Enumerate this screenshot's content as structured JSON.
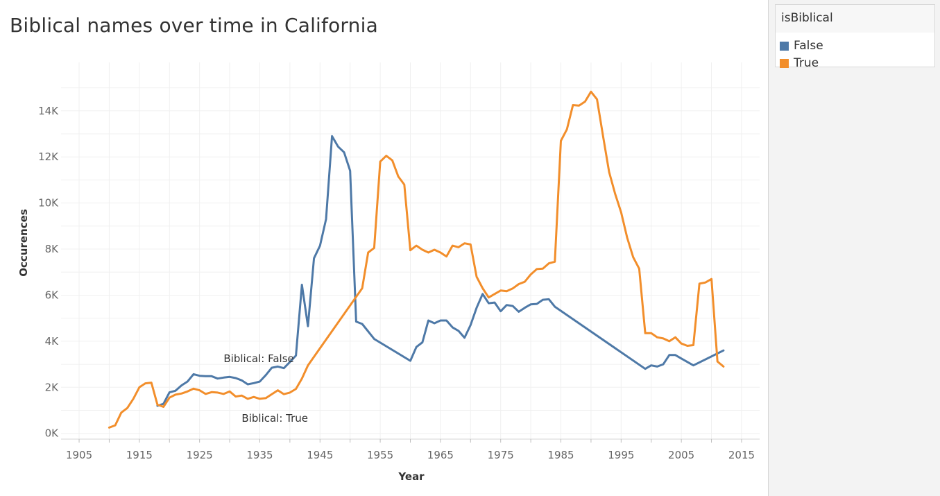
{
  "legend": {
    "title": "isBiblical",
    "items": [
      {
        "label": "False",
        "color": "#4e79a7"
      },
      {
        "label": "True",
        "color": "#f28e2b"
      }
    ]
  },
  "chart_data": {
    "type": "line",
    "title": "Biblical names over time in California",
    "xlabel": "Year",
    "ylabel": "Occurences",
    "xlim": [
      1902,
      1218
    ],
    "ylim": [
      -250,
      15500
    ],
    "x_ticks": [
      1905,
      1915,
      1925,
      1935,
      1945,
      1955,
      1965,
      1975,
      1985,
      1995,
      2005,
      2015
    ],
    "x_tick_labels": [
      "1905",
      "1915",
      "1925",
      "1935",
      "1945",
      "1955",
      "1965",
      "1975",
      "1985",
      "1995",
      "2005",
      "2015"
    ],
    "y_ticks": [
      0,
      2000,
      4000,
      6000,
      8000,
      10000,
      12000,
      14000
    ],
    "y_tick_labels": [
      "0K",
      "2K",
      "4K",
      "6K",
      "8K",
      "10K",
      "12K",
      "14K"
    ],
    "grid": true,
    "legend_position": "right",
    "annotations": [
      {
        "text": "Biblical: False",
        "x": 1929,
        "y": 3250
      },
      {
        "text": "Biblical: True",
        "x": 1932,
        "y": 650
      }
    ],
    "series": [
      {
        "name": "False",
        "color": "#4e79a7",
        "points": [
          [
            1918,
            1200
          ],
          [
            1919,
            1280
          ],
          [
            1920,
            1780
          ],
          [
            1921,
            1850
          ],
          [
            1922,
            2080
          ],
          [
            1923,
            2250
          ],
          [
            1924,
            2570
          ],
          [
            1925,
            2500
          ],
          [
            1926,
            2480
          ],
          [
            1927,
            2480
          ],
          [
            1928,
            2380
          ],
          [
            1929,
            2420
          ],
          [
            1930,
            2450
          ],
          [
            1931,
            2400
          ],
          [
            1932,
            2300
          ],
          [
            1933,
            2130
          ],
          [
            1934,
            2180
          ],
          [
            1935,
            2250
          ],
          [
            1936,
            2530
          ],
          [
            1937,
            2850
          ],
          [
            1938,
            2900
          ],
          [
            1939,
            2830
          ],
          [
            1940,
            3100
          ],
          [
            1941,
            3380
          ],
          [
            1942,
            6450
          ],
          [
            1943,
            4650
          ],
          [
            1944,
            7600
          ],
          [
            1945,
            8150
          ],
          [
            1946,
            9300
          ],
          [
            1947,
            12900
          ],
          [
            1948,
            12450
          ],
          [
            1949,
            12200
          ],
          [
            1950,
            11400
          ],
          [
            1951,
            4850
          ],
          [
            1952,
            4750
          ],
          [
            1954,
            4100
          ],
          [
            1960,
            3150
          ],
          [
            1961,
            3750
          ],
          [
            1962,
            3950
          ],
          [
            1963,
            4900
          ],
          [
            1964,
            4780
          ],
          [
            1965,
            4900
          ],
          [
            1966,
            4900
          ],
          [
            1967,
            4600
          ],
          [
            1968,
            4450
          ],
          [
            1969,
            4150
          ],
          [
            1970,
            4700
          ],
          [
            1971,
            5450
          ],
          [
            1972,
            6050
          ],
          [
            1973,
            5650
          ],
          [
            1974,
            5680
          ],
          [
            1975,
            5300
          ],
          [
            1976,
            5570
          ],
          [
            1977,
            5530
          ],
          [
            1978,
            5280
          ],
          [
            1979,
            5450
          ],
          [
            1980,
            5600
          ],
          [
            1981,
            5620
          ],
          [
            1982,
            5800
          ],
          [
            1983,
            5820
          ],
          [
            1984,
            5500
          ],
          [
            1999,
            2800
          ],
          [
            2000,
            2950
          ],
          [
            2001,
            2900
          ],
          [
            2002,
            3000
          ],
          [
            2003,
            3400
          ],
          [
            2004,
            3400
          ],
          [
            2005,
            3250
          ],
          [
            2007,
            2950
          ],
          [
            2012,
            3600
          ]
        ]
      },
      {
        "name": "True",
        "color": "#f28e2b",
        "points": [
          [
            1910,
            250
          ],
          [
            1911,
            350
          ],
          [
            1912,
            900
          ],
          [
            1913,
            1100
          ],
          [
            1914,
            1500
          ],
          [
            1915,
            2000
          ],
          [
            1916,
            2170
          ],
          [
            1917,
            2200
          ],
          [
            1918,
            1250
          ],
          [
            1919,
            1150
          ],
          [
            1920,
            1550
          ],
          [
            1921,
            1680
          ],
          [
            1922,
            1730
          ],
          [
            1923,
            1820
          ],
          [
            1924,
            1940
          ],
          [
            1925,
            1870
          ],
          [
            1926,
            1710
          ],
          [
            1927,
            1790
          ],
          [
            1928,
            1770
          ],
          [
            1929,
            1710
          ],
          [
            1930,
            1820
          ],
          [
            1931,
            1600
          ],
          [
            1932,
            1640
          ],
          [
            1933,
            1500
          ],
          [
            1934,
            1580
          ],
          [
            1935,
            1500
          ],
          [
            1936,
            1530
          ],
          [
            1937,
            1700
          ],
          [
            1938,
            1870
          ],
          [
            1939,
            1700
          ],
          [
            1940,
            1770
          ],
          [
            1941,
            1930
          ],
          [
            1942,
            2380
          ],
          [
            1943,
            2950
          ],
          [
            1952,
            6300
          ],
          [
            1953,
            7850
          ],
          [
            1954,
            8050
          ],
          [
            1955,
            11800
          ],
          [
            1956,
            12050
          ],
          [
            1957,
            11850
          ],
          [
            1958,
            11150
          ],
          [
            1959,
            10800
          ],
          [
            1960,
            7950
          ],
          [
            1961,
            8150
          ],
          [
            1962,
            7970
          ],
          [
            1963,
            7850
          ],
          [
            1964,
            7970
          ],
          [
            1965,
            7850
          ],
          [
            1966,
            7680
          ],
          [
            1967,
            8150
          ],
          [
            1968,
            8080
          ],
          [
            1969,
            8250
          ],
          [
            1970,
            8200
          ],
          [
            1971,
            6800
          ],
          [
            1972,
            6300
          ],
          [
            1973,
            5900
          ],
          [
            1974,
            6050
          ],
          [
            1975,
            6200
          ],
          [
            1976,
            6170
          ],
          [
            1977,
            6290
          ],
          [
            1978,
            6480
          ],
          [
            1979,
            6580
          ],
          [
            1980,
            6900
          ],
          [
            1981,
            7130
          ],
          [
            1982,
            7150
          ],
          [
            1983,
            7380
          ],
          [
            1984,
            7450
          ],
          [
            1985,
            12700
          ],
          [
            1986,
            13200
          ],
          [
            1987,
            14250
          ],
          [
            1988,
            14230
          ],
          [
            1989,
            14400
          ],
          [
            1990,
            14830
          ],
          [
            1991,
            14500
          ],
          [
            1992,
            12900
          ],
          [
            1993,
            11350
          ],
          [
            1994,
            10400
          ],
          [
            1995,
            9600
          ],
          [
            1996,
            8500
          ],
          [
            1997,
            7650
          ],
          [
            1998,
            7150
          ],
          [
            1999,
            4350
          ],
          [
            2000,
            4350
          ],
          [
            2001,
            4170
          ],
          [
            2002,
            4120
          ],
          [
            2003,
            4000
          ],
          [
            2004,
            4170
          ],
          [
            2005,
            3900
          ],
          [
            2006,
            3800
          ],
          [
            2007,
            3830
          ],
          [
            2008,
            6500
          ],
          [
            2009,
            6550
          ],
          [
            2010,
            6700
          ],
          [
            2011,
            3120
          ],
          [
            2012,
            2900
          ]
        ]
      }
    ]
  }
}
